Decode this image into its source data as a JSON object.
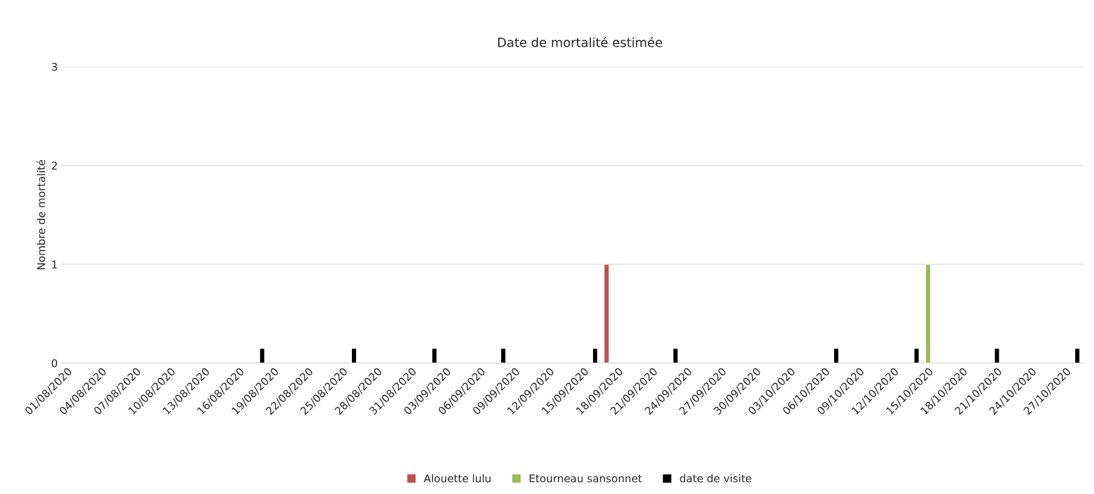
{
  "chart_data": {
    "type": "bar",
    "title": "Date de mortalité estimée",
    "ylabel": "Nombre de mortalité",
    "series": [
      {
        "name": "Alouette lulu",
        "color": "#c0504d",
        "x": [
          "2020-09-17"
        ],
        "values": [
          1
        ]
      },
      {
        "name": "Etourneau sansonnet",
        "color": "#9bbb59",
        "x": [
          "2020-10-15"
        ],
        "values": [
          1
        ]
      },
      {
        "name": "date de visite",
        "color": "#000000",
        "x": [
          "2020-08-18",
          "2020-08-26",
          "2020-09-02",
          "2020-09-08",
          "2020-09-16",
          "2020-09-23",
          "2020-10-07",
          "2020-10-14",
          "2020-10-21",
          "2020-10-28"
        ],
        "values": [
          0.15,
          0.15,
          0.15,
          0.15,
          0.15,
          0.15,
          0.15,
          0.15,
          0.15,
          0.15
        ]
      }
    ],
    "xlim": [
      "2020-07-31T12:00",
      "2020-10-28T12:00"
    ],
    "xticks": [
      {
        "value": "2020-08-01",
        "label": "01/08/2020"
      },
      {
        "value": "2020-08-04",
        "label": "04/08/2020"
      },
      {
        "value": "2020-08-07",
        "label": "07/08/2020"
      },
      {
        "value": "2020-08-10",
        "label": "10/08/2020"
      },
      {
        "value": "2020-08-13",
        "label": "13/08/2020"
      },
      {
        "value": "2020-08-16",
        "label": "16/08/2020"
      },
      {
        "value": "2020-08-19",
        "label": "19/08/2020"
      },
      {
        "value": "2020-08-22",
        "label": "22/08/2020"
      },
      {
        "value": "2020-08-25",
        "label": "25/08/2020"
      },
      {
        "value": "2020-08-28",
        "label": "28/08/2020"
      },
      {
        "value": "2020-08-31",
        "label": "31/08/2020"
      },
      {
        "value": "2020-09-03",
        "label": "03/09/2020"
      },
      {
        "value": "2020-09-06",
        "label": "06/09/2020"
      },
      {
        "value": "2020-09-09",
        "label": "09/09/2020"
      },
      {
        "value": "2020-09-12",
        "label": "12/09/2020"
      },
      {
        "value": "2020-09-15",
        "label": "15/09/2020"
      },
      {
        "value": "2020-09-18",
        "label": "18/09/2020"
      },
      {
        "value": "2020-09-21",
        "label": "21/09/2020"
      },
      {
        "value": "2020-09-24",
        "label": "24/09/2020"
      },
      {
        "value": "2020-09-27",
        "label": "27/09/2020"
      },
      {
        "value": "2020-09-30",
        "label": "30/09/2020"
      },
      {
        "value": "2020-10-03",
        "label": "03/10/2020"
      },
      {
        "value": "2020-10-06",
        "label": "06/10/2020"
      },
      {
        "value": "2020-10-09",
        "label": "09/10/2020"
      },
      {
        "value": "2020-10-12",
        "label": "12/10/2020"
      },
      {
        "value": "2020-10-15",
        "label": "15/10/2020"
      },
      {
        "value": "2020-10-18",
        "label": "18/10/2020"
      },
      {
        "value": "2020-10-21",
        "label": "21/10/2020"
      },
      {
        "value": "2020-10-24",
        "label": "24/10/2020"
      },
      {
        "value": "2020-10-27",
        "label": "27/10/2020"
      }
    ],
    "ylim": [
      0,
      3
    ],
    "yticks": [
      0,
      1,
      2,
      3
    ],
    "grid": "y",
    "legend": "bottom"
  }
}
